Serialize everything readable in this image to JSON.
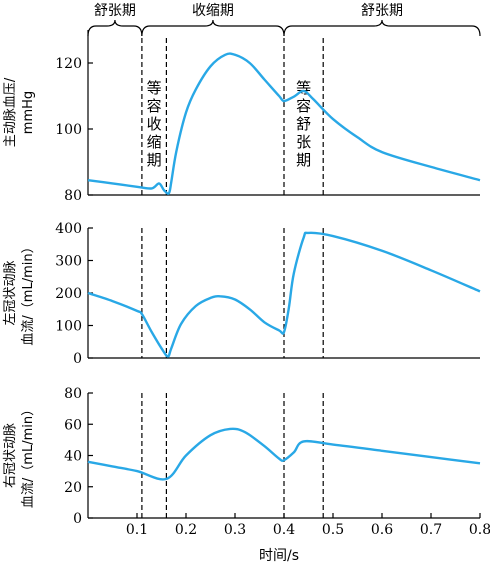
{
  "chart_data": {
    "type": "line",
    "xlabel": "时间/s",
    "x_ticks": [
      0.1,
      0.2,
      0.3,
      0.4,
      0.5,
      0.6,
      0.7,
      0.8
    ],
    "xlim": [
      0,
      0.8
    ],
    "phase_markers": [
      0.11,
      0.16,
      0.4,
      0.48
    ],
    "phases": [
      {
        "label": "舒张期",
        "from": 0,
        "to": 0.11
      },
      {
        "label": "收缩期",
        "from": 0.11,
        "to": 0.4
      },
      {
        "label": "舒张期",
        "from": 0.4,
        "to": 0.8
      }
    ],
    "panels": [
      {
        "ylabel": "主动脉血压/mmHg",
        "ylabel_lines": [
          "主动脉血压/",
          "mmHg"
        ],
        "ylim": [
          80,
          130
        ],
        "y_ticks": [
          80,
          100,
          120
        ],
        "annotations": [
          {
            "text": "等容收缩期",
            "x": 0.135
          },
          {
            "text": "等容舒张期",
            "x": 0.44
          }
        ],
        "x": [
          0,
          0.05,
          0.1,
          0.13,
          0.145,
          0.155,
          0.165,
          0.17,
          0.18,
          0.2,
          0.22,
          0.25,
          0.28,
          0.3,
          0.33,
          0.36,
          0.39,
          0.4,
          0.42,
          0.44,
          0.46,
          0.5,
          0.55,
          0.6,
          0.7,
          0.8
        ],
        "values": [
          84.5,
          83.5,
          82.5,
          82,
          83.5,
          81.5,
          80.5,
          84,
          93,
          105,
          112,
          119,
          122.5,
          122.5,
          120,
          115,
          110,
          108.5,
          109.8,
          111.5,
          109,
          103,
          97.5,
          93,
          88.5,
          84.5
        ]
      },
      {
        "ylabel": "左冠状动脉血流/（mL/min）",
        "ylabel_lines": [
          "左冠状动脉",
          "血流/（mL/min）"
        ],
        "ylim": [
          0,
          400
        ],
        "y_ticks": [
          0,
          100,
          200,
          300,
          400
        ],
        "x": [
          0,
          0.05,
          0.1,
          0.11,
          0.13,
          0.15,
          0.163,
          0.17,
          0.19,
          0.22,
          0.25,
          0.27,
          0.3,
          0.33,
          0.36,
          0.39,
          0.4,
          0.41,
          0.42,
          0.44,
          0.45,
          0.5,
          0.6,
          0.7,
          0.8
        ],
        "values": [
          200,
          175,
          145,
          135,
          80,
          30,
          5,
          30,
          105,
          160,
          185,
          190,
          180,
          150,
          110,
          85,
          80,
          155,
          260,
          370,
          385,
          375,
          330,
          270,
          205
        ]
      },
      {
        "ylabel": "右冠状动脉血流/（mL/min）",
        "ylabel_lines": [
          "右冠状动脉",
          "血流/（mL/min）"
        ],
        "ylim": [
          0,
          80
        ],
        "y_ticks": [
          0,
          20,
          40,
          60,
          80
        ],
        "x": [
          0,
          0.05,
          0.1,
          0.16,
          0.2,
          0.25,
          0.29,
          0.32,
          0.36,
          0.39,
          0.4,
          0.42,
          0.44,
          0.5,
          0.6,
          0.7,
          0.8
        ],
        "values": [
          36,
          33,
          30,
          25,
          40,
          53,
          57,
          55,
          46,
          38,
          37,
          42,
          49,
          47,
          43,
          39,
          35
        ]
      }
    ]
  }
}
